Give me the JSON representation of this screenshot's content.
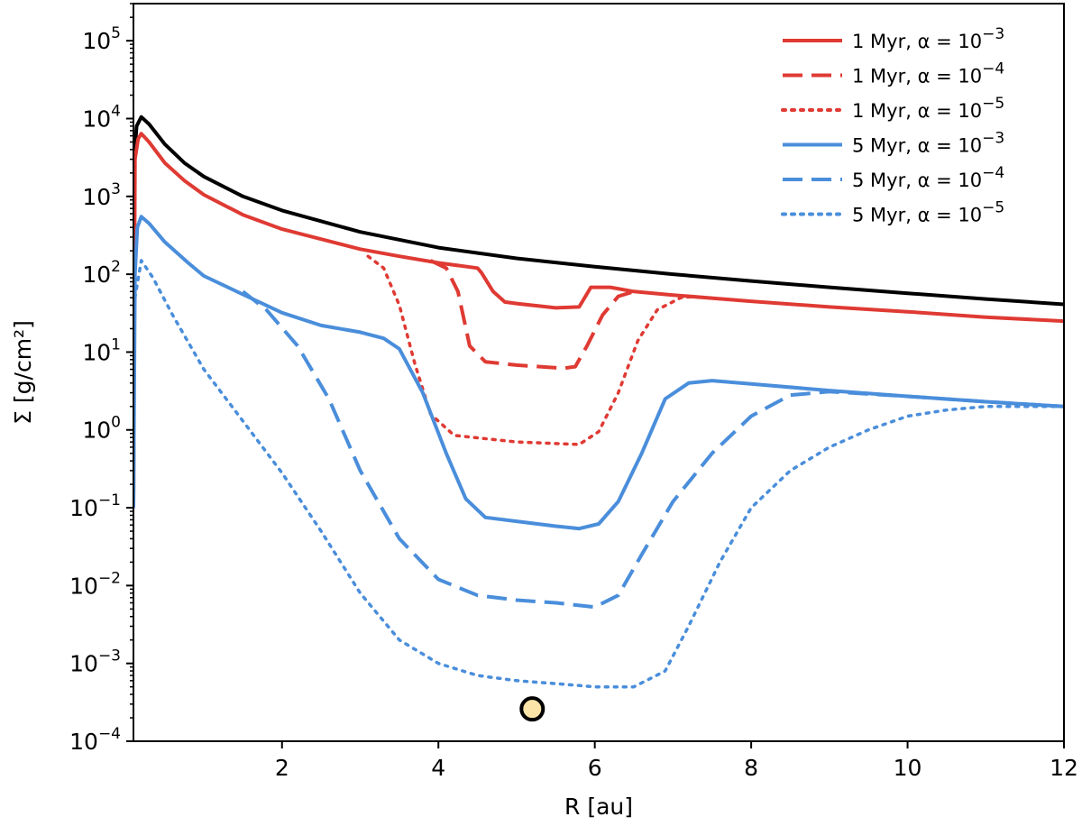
{
  "chart_data": {
    "type": "line",
    "xlabel": "R [au]",
    "ylabel": "Σ [g/cm²]",
    "xlim": [
      0.1,
      12
    ],
    "ylim": [
      0.0001,
      300000
    ],
    "yscale": "log",
    "xticks": [
      2,
      4,
      6,
      8,
      10,
      12
    ],
    "yticks": [
      {
        "value": 0.0001,
        "base": "10",
        "exp": "−4"
      },
      {
        "value": 0.001,
        "base": "10",
        "exp": "−3"
      },
      {
        "value": 0.01,
        "base": "10",
        "exp": "−2"
      },
      {
        "value": 0.1,
        "base": "10",
        "exp": "−1"
      },
      {
        "value": 1,
        "base": "10",
        "exp": "0"
      },
      {
        "value": 10,
        "base": "10",
        "exp": "1"
      },
      {
        "value": 100,
        "base": "10",
        "exp": "2"
      },
      {
        "value": 1000,
        "base": "10",
        "exp": "3"
      },
      {
        "value": 10000,
        "base": "10",
        "exp": "4"
      },
      {
        "value": 100000,
        "base": "10",
        "exp": "5"
      }
    ],
    "legend_position": "top-right",
    "marker": {
      "name": "planet",
      "x": 5.2,
      "y": 0.00026,
      "fill": "#fce4a8",
      "stroke": "#000000"
    },
    "series": [
      {
        "name": "initial",
        "label": "",
        "color": "#000000",
        "dash": "solid",
        "legend": false,
        "points": [
          [
            0.1,
            0.1
          ],
          [
            0.11,
            3000
          ],
          [
            0.14,
            8000
          ],
          [
            0.2,
            10500
          ],
          [
            0.3,
            8500
          ],
          [
            0.5,
            4700
          ],
          [
            0.75,
            2700
          ],
          [
            1,
            1800
          ],
          [
            1.5,
            1000
          ],
          [
            2,
            660
          ],
          [
            3,
            350
          ],
          [
            4,
            220
          ],
          [
            5,
            160
          ],
          [
            6,
            125
          ],
          [
            7,
            100
          ],
          [
            8,
            82
          ],
          [
            9,
            68
          ],
          [
            10,
            57
          ],
          [
            11,
            48
          ],
          [
            12,
            41
          ]
        ]
      },
      {
        "name": "1myr-a3",
        "label": "1 Myr, α = 10",
        "alpha_exp": "−3",
        "color": "#df3a33",
        "dash": "solid",
        "legend": true,
        "points": [
          [
            0.1,
            0.1
          ],
          [
            0.12,
            3000
          ],
          [
            0.16,
            5500
          ],
          [
            0.2,
            6400
          ],
          [
            0.3,
            5000
          ],
          [
            0.5,
            2700
          ],
          [
            0.75,
            1600
          ],
          [
            1,
            1050
          ],
          [
            1.5,
            580
          ],
          [
            2,
            380
          ],
          [
            3,
            210
          ],
          [
            3.5,
            170
          ],
          [
            4,
            140
          ],
          [
            4.5,
            120
          ],
          [
            4.55,
            105
          ],
          [
            4.7,
            60
          ],
          [
            4.85,
            44
          ],
          [
            5.0,
            42
          ],
          [
            5.5,
            37
          ],
          [
            5.8,
            38
          ],
          [
            5.95,
            68
          ],
          [
            6.2,
            68
          ],
          [
            6.5,
            60
          ],
          [
            7,
            54
          ],
          [
            8,
            45
          ],
          [
            9,
            38
          ],
          [
            10,
            33
          ],
          [
            11,
            28
          ],
          [
            12,
            25
          ]
        ]
      },
      {
        "name": "1myr-a4",
        "label": "1 Myr, α = 10",
        "alpha_exp": "−4",
        "color": "#df3a33",
        "dash": "dashed",
        "legend": true,
        "points": [
          [
            3.9,
            150
          ],
          [
            4.1,
            120
          ],
          [
            4.25,
            60
          ],
          [
            4.4,
            12
          ],
          [
            4.6,
            7.5
          ],
          [
            5,
            6.8
          ],
          [
            5.6,
            6.2
          ],
          [
            5.75,
            6.5
          ],
          [
            5.9,
            12
          ],
          [
            6.1,
            30
          ],
          [
            6.3,
            52
          ],
          [
            6.5,
            60
          ]
        ]
      },
      {
        "name": "1myr-a5",
        "label": "1 Myr, α = 10",
        "alpha_exp": "−5",
        "color": "#df3a33",
        "dash": "dotted",
        "legend": true,
        "points": [
          [
            3.1,
            170
          ],
          [
            3.3,
            120
          ],
          [
            3.5,
            40
          ],
          [
            3.7,
            7
          ],
          [
            3.9,
            1.6
          ],
          [
            4.2,
            0.85
          ],
          [
            5,
            0.7
          ],
          [
            5.8,
            0.65
          ],
          [
            6.05,
            0.95
          ],
          [
            6.3,
            3
          ],
          [
            6.55,
            14
          ],
          [
            6.8,
            35
          ],
          [
            7.1,
            50
          ],
          [
            7.3,
            52
          ]
        ]
      },
      {
        "name": "5myr-a3",
        "label": "5 Myr, α = 10",
        "alpha_exp": "−3",
        "color": "#4a8edb",
        "dash": "solid",
        "legend": true,
        "points": [
          [
            0.1,
            0.1
          ],
          [
            0.12,
            100
          ],
          [
            0.15,
            400
          ],
          [
            0.2,
            550
          ],
          [
            0.3,
            450
          ],
          [
            0.5,
            260
          ],
          [
            0.8,
            140
          ],
          [
            1,
            95
          ],
          [
            1.5,
            55
          ],
          [
            2,
            32
          ],
          [
            2.5,
            22
          ],
          [
            3,
            18
          ],
          [
            3.3,
            15
          ],
          [
            3.5,
            11
          ],
          [
            3.8,
            3
          ],
          [
            4.1,
            0.5
          ],
          [
            4.35,
            0.13
          ],
          [
            4.6,
            0.075
          ],
          [
            5,
            0.067
          ],
          [
            5.5,
            0.058
          ],
          [
            5.8,
            0.054
          ],
          [
            6.05,
            0.062
          ],
          [
            6.3,
            0.12
          ],
          [
            6.6,
            0.5
          ],
          [
            6.9,
            2.5
          ],
          [
            7.2,
            4
          ],
          [
            7.5,
            4.3
          ],
          [
            8,
            3.9
          ],
          [
            9,
            3.2
          ],
          [
            10,
            2.7
          ],
          [
            11,
            2.3
          ],
          [
            12,
            2.0
          ]
        ]
      },
      {
        "name": "5myr-a4",
        "label": "5 Myr, α = 10",
        "alpha_exp": "−4",
        "color": "#4a8edb",
        "dash": "dashed",
        "legend": true,
        "points": [
          [
            1.5,
            60
          ],
          [
            1.8,
            35
          ],
          [
            2.2,
            12
          ],
          [
            2.6,
            2.5
          ],
          [
            3,
            0.3
          ],
          [
            3.5,
            0.04
          ],
          [
            4,
            0.012
          ],
          [
            4.5,
            0.0075
          ],
          [
            5,
            0.0065
          ],
          [
            5.5,
            0.006
          ],
          [
            6,
            0.0053
          ],
          [
            6.3,
            0.0075
          ],
          [
            6.6,
            0.025
          ],
          [
            7,
            0.12
          ],
          [
            7.5,
            0.5
          ],
          [
            8,
            1.5
          ],
          [
            8.5,
            2.8
          ],
          [
            9,
            3.1
          ],
          [
            10,
            2.7
          ],
          [
            11,
            2.3
          ],
          [
            12,
            2.0
          ]
        ]
      },
      {
        "name": "5myr-a5",
        "label": "5 Myr, α = 10",
        "alpha_exp": "−5",
        "color": "#4a8edb",
        "dash": "dotted",
        "legend": true,
        "points": [
          [
            0.12,
            50
          ],
          [
            0.2,
            150
          ],
          [
            0.35,
            90
          ],
          [
            0.6,
            30
          ],
          [
            1,
            6
          ],
          [
            1.5,
            1.3
          ],
          [
            2,
            0.28
          ],
          [
            2.5,
            0.05
          ],
          [
            3,
            0.008
          ],
          [
            3.5,
            0.002
          ],
          [
            4,
            0.001
          ],
          [
            4.5,
            0.0007
          ],
          [
            5,
            0.0006
          ],
          [
            5.5,
            0.00055
          ],
          [
            6,
            0.0005
          ],
          [
            6.5,
            0.0005
          ],
          [
            6.9,
            0.0008
          ],
          [
            7.2,
            0.003
          ],
          [
            7.6,
            0.02
          ],
          [
            8,
            0.1
          ],
          [
            8.5,
            0.3
          ],
          [
            9,
            0.6
          ],
          [
            9.5,
            1
          ],
          [
            10,
            1.5
          ],
          [
            10.5,
            1.8
          ],
          [
            11,
            2.0
          ],
          [
            12,
            2.0
          ]
        ]
      }
    ]
  }
}
